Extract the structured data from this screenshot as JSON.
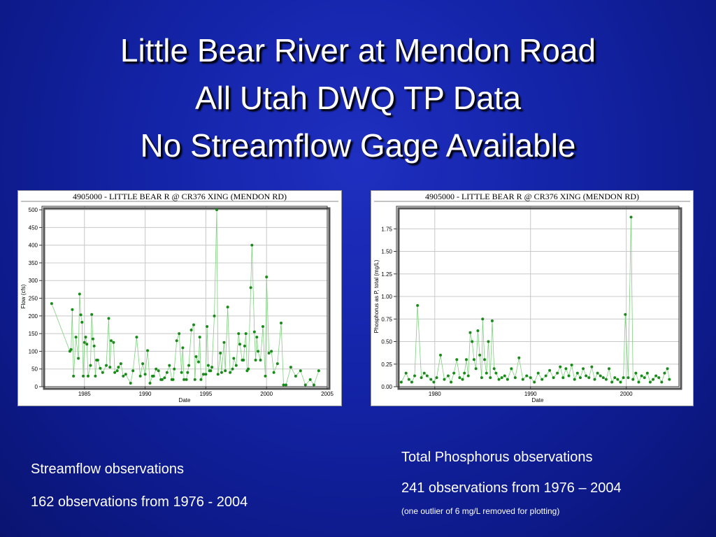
{
  "title": {
    "line1": "Little Bear River at Mendon Road",
    "line2": "All Utah DWQ TP Data",
    "line3": "No Streamflow Gage Available"
  },
  "captions": {
    "left_heading": "Streamflow observations",
    "left_detail": "162 observations from 1976 - 2004",
    "right_heading": "Total Phosphorus observations",
    "right_detail": "241 observations from 1976 – 2004",
    "right_note": "(one outlier of 6 mg/L removed for plotting)"
  },
  "colors": {
    "point": "#1a8a1a",
    "line": "#7fd07f",
    "grid": "#c8c8c8"
  },
  "chart_data": [
    {
      "type": "line",
      "title": "4905000 - LITTLE BEAR R @ CR376 XING (MENDON RD)",
      "xlabel": "Date",
      "ylabel": "Flow (cfs)",
      "xlim": [
        1981.5,
        2005
      ],
      "ylim": [
        0,
        510
      ],
      "xticks": [
        1985,
        1990,
        1995,
        2000,
        2005
      ],
      "yticks": [
        0,
        50,
        100,
        150,
        200,
        250,
        300,
        350,
        400,
        450,
        500
      ],
      "grid": true,
      "series": [
        {
          "x": [
            1982.3,
            1983.8,
            1983.9,
            1984.0,
            1984.1,
            1984.3,
            1984.5,
            1984.6,
            1984.7,
            1984.8,
            1984.9,
            1985.0,
            1985.1,
            1985.2,
            1985.3,
            1985.5,
            1985.6,
            1985.7,
            1985.8,
            1985.9,
            1986.0,
            1986.1,
            1986.3,
            1986.5,
            1986.8,
            1987.0,
            1987.1,
            1987.2,
            1987.4,
            1987.5,
            1987.7,
            1987.8,
            1988.0,
            1988.2,
            1988.4,
            1988.8,
            1989.0,
            1989.3,
            1989.6,
            1989.8,
            1990.0,
            1990.2,
            1990.4,
            1990.6,
            1990.7,
            1990.9,
            1991.1,
            1991.3,
            1991.4,
            1991.6,
            1991.8,
            1992.0,
            1992.2,
            1992.3,
            1992.4,
            1992.6,
            1992.8,
            1993.0,
            1993.1,
            1993.2,
            1993.4,
            1993.5,
            1993.6,
            1993.8,
            1994.0,
            1994.1,
            1994.2,
            1994.4,
            1994.5,
            1994.6,
            1994.8,
            1995.0,
            1995.1,
            1995.2,
            1995.3,
            1995.4,
            1995.5,
            1995.7,
            1995.9,
            1996.0,
            1996.2,
            1996.3,
            1996.5,
            1996.6,
            1996.8,
            1997.0,
            1997.2,
            1997.3,
            1997.5,
            1997.7,
            1997.8,
            1998.0,
            1998.1,
            1998.2,
            1998.3,
            1998.4,
            1998.5,
            1998.7,
            1998.8,
            1999.0,
            1999.1,
            1999.2,
            1999.3,
            1999.5,
            1999.7,
            1999.9,
            2000.0,
            2000.2,
            2000.4,
            2000.6,
            2000.9,
            2001.2,
            2001.4,
            2001.6,
            2002.0,
            2002.4,
            2002.8,
            2003.2,
            2003.6,
            2003.9,
            2004.3
          ],
          "y": [
            235,
            100,
            105,
            218,
            30,
            140,
            80,
            262,
            203,
            182,
            30,
            125,
            140,
            120,
            30,
            60,
            204,
            135,
            115,
            30,
            75,
            75,
            52,
            40,
            60,
            193,
            55,
            130,
            125,
            40,
            45,
            55,
            65,
            30,
            35,
            10,
            45,
            140,
            30,
            65,
            35,
            102,
            10,
            30,
            30,
            50,
            45,
            20,
            20,
            25,
            40,
            60,
            20,
            20,
            50,
            130,
            150,
            40,
            110,
            20,
            20,
            40,
            60,
            160,
            175,
            20,
            85,
            70,
            140,
            20,
            35,
            35,
            170,
            60,
            45,
            45,
            55,
            200,
            500,
            35,
            95,
            40,
            125,
            45,
            225,
            40,
            50,
            80,
            60,
            150,
            120,
            75,
            75,
            115,
            150,
            45,
            50,
            280,
            400,
            155,
            75,
            140,
            100,
            75,
            170,
            30,
            310,
            95,
            100,
            40,
            65,
            180,
            5,
            5,
            55,
            30,
            45,
            5,
            20,
            5,
            45
          ]
        }
      ]
    },
    {
      "type": "line",
      "title": "4905000 - LITTLE BEAR R @ CR376 XING (MENDON RD)",
      "xlabel": "Date",
      "ylabel": "Phosphorus as P, total (mg/L)",
      "xlim": [
        1976,
        2005.5
      ],
      "ylim": [
        0,
        2.0
      ],
      "xticks": [
        1980,
        1990,
        2000
      ],
      "yticks": [
        0.0,
        0.25,
        0.5,
        0.75,
        1.0,
        1.25,
        1.5,
        1.75
      ],
      "ytick_labels": [
        "0.00",
        "0.25",
        "0.50",
        "0.75",
        "1.00",
        "1.25",
        "1.50",
        "1.75"
      ],
      "grid": true,
      "series": [
        {
          "x": [
            1976.5,
            1977.0,
            1977.3,
            1977.6,
            1977.9,
            1978.2,
            1978.6,
            1978.9,
            1979.2,
            1979.6,
            1979.9,
            1980.2,
            1980.6,
            1981.0,
            1981.4,
            1981.7,
            1982.0,
            1982.3,
            1982.6,
            1982.9,
            1983.1,
            1983.3,
            1983.5,
            1983.7,
            1983.9,
            1984.1,
            1984.3,
            1984.5,
            1984.7,
            1984.9,
            1985.0,
            1985.2,
            1985.4,
            1985.6,
            1985.8,
            1986.0,
            1986.2,
            1986.4,
            1986.7,
            1987.0,
            1987.3,
            1987.6,
            1988.0,
            1988.4,
            1988.8,
            1989.2,
            1989.6,
            1990.0,
            1990.4,
            1990.8,
            1991.2,
            1991.6,
            1992.0,
            1992.4,
            1992.8,
            1993.1,
            1993.4,
            1993.7,
            1994.0,
            1994.3,
            1994.6,
            1994.9,
            1995.2,
            1995.5,
            1995.8,
            1996.1,
            1996.4,
            1996.7,
            1997.0,
            1997.3,
            1997.6,
            1997.9,
            1998.2,
            1998.5,
            1998.8,
            1999.1,
            1999.4,
            1999.7,
            1999.9,
            2000.2,
            2000.5,
            2000.7,
            2001.0,
            2001.3,
            2001.6,
            2001.9,
            2002.2,
            2002.5,
            2002.8,
            2003.1,
            2003.4,
            2003.7,
            2004.0,
            2004.3,
            2004.5
          ],
          "y": [
            0.05,
            0.15,
            0.08,
            0.05,
            0.12,
            0.9,
            0.1,
            0.15,
            0.12,
            0.08,
            0.05,
            0.1,
            0.35,
            0.08,
            0.12,
            0.05,
            0.15,
            0.3,
            0.1,
            0.08,
            0.15,
            0.3,
            0.12,
            0.6,
            0.5,
            0.3,
            0.2,
            0.62,
            0.35,
            0.1,
            0.75,
            0.3,
            0.15,
            0.5,
            0.1,
            0.73,
            0.2,
            0.15,
            0.08,
            0.1,
            0.12,
            0.08,
            0.2,
            0.1,
            0.32,
            0.08,
            0.12,
            0.1,
            0.05,
            0.15,
            0.08,
            0.12,
            0.18,
            0.1,
            0.15,
            0.22,
            0.1,
            0.2,
            0.12,
            0.24,
            0.08,
            0.15,
            0.1,
            0.2,
            0.12,
            0.1,
            0.22,
            0.08,
            0.15,
            0.12,
            0.1,
            0.08,
            0.2,
            0.05,
            0.1,
            0.08,
            0.05,
            0.1,
            0.8,
            0.1,
            1.88,
            0.08,
            0.15,
            0.05,
            0.12,
            0.1,
            0.15,
            0.05,
            0.08,
            0.12,
            0.1,
            0.05,
            0.15,
            0.2,
            0.08
          ]
        }
      ]
    }
  ]
}
